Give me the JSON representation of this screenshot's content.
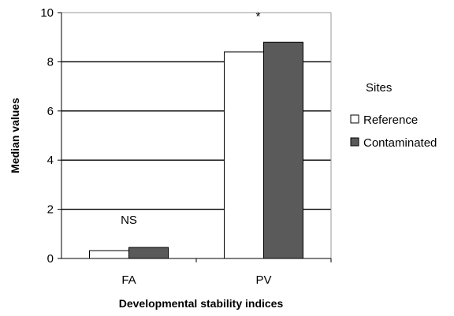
{
  "chart_data": {
    "type": "bar",
    "categories": [
      "FA",
      "PV"
    ],
    "series": [
      {
        "name": "Reference",
        "values": [
          0.32,
          8.4
        ],
        "color": "#ffffff"
      },
      {
        "name": "Contaminated",
        "values": [
          0.45,
          8.8
        ],
        "color": "#5a5a5a"
      }
    ],
    "xlabel": "Developmental stability indices",
    "ylabel": "Median values",
    "ylim": [
      0,
      10
    ],
    "yticks": [
      0,
      2,
      4,
      6,
      8,
      10
    ],
    "grid": true,
    "legend": {
      "title": "Sites",
      "placement": "right"
    },
    "annotations": [
      {
        "text": "NS",
        "category": "FA"
      },
      {
        "text": "*",
        "category": "PV"
      }
    ]
  }
}
